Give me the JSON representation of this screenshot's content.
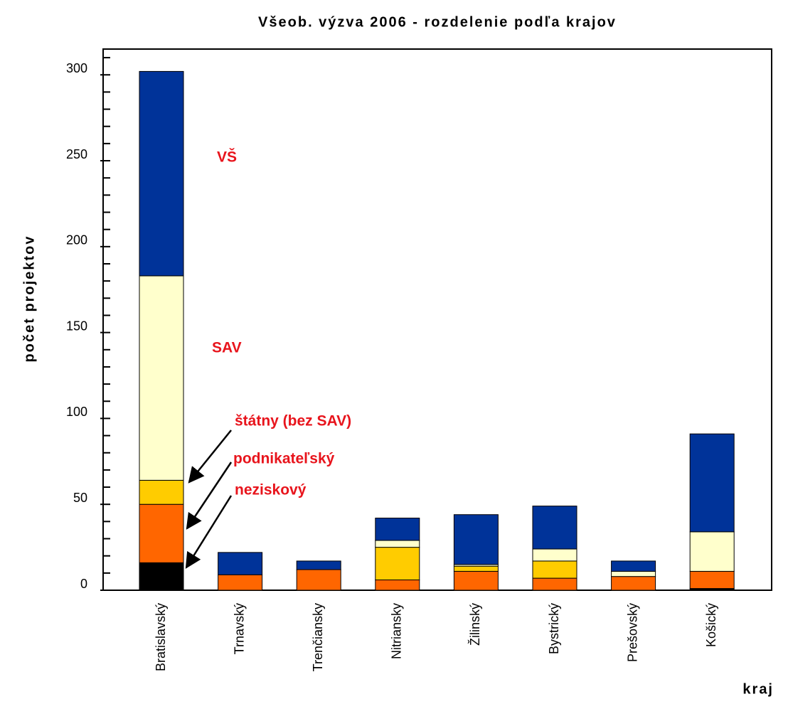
{
  "chart_data": {
    "type": "stacked_bar",
    "title": "Všeob.  výzva 2006 - rozdelenie podľa krajov",
    "y_label": "počet projektov",
    "x_label": "kraj",
    "categories": [
      "Bratislavský",
      "Trnavský",
      "Trenčiansky",
      "Nitriansky",
      "Žilinský",
      "Bystrický",
      "Prešovský",
      "Košický"
    ],
    "series": [
      {
        "name": "neziskový",
        "color": "#000000",
        "values": [
          16,
          0,
          0,
          0,
          0,
          0,
          0,
          1
        ]
      },
      {
        "name": "podnikateľský",
        "color": "#ff6600",
        "values": [
          34,
          9,
          12,
          6,
          11,
          7,
          8,
          10
        ]
      },
      {
        "name": "štátny (bez SAV)",
        "color": "#ffcc00",
        "values": [
          14,
          0,
          0,
          19,
          3,
          10,
          0,
          0
        ]
      },
      {
        "name": "SAV",
        "color": "#ffffcc",
        "values": [
          119,
          0,
          0,
          4,
          1,
          7,
          3,
          23
        ]
      },
      {
        "name": "VŠ",
        "color": "#003399",
        "values": [
          119,
          13,
          5,
          13,
          29,
          25,
          6,
          57
        ]
      }
    ],
    "ylim": [
      0,
      315
    ],
    "yticks": [
      0,
      50,
      100,
      150,
      200,
      250,
      300
    ],
    "yticks_minor": [
      10,
      20,
      30,
      40,
      60,
      70,
      80,
      90,
      110,
      120,
      130,
      140,
      160,
      170,
      180,
      190,
      210,
      220,
      230,
      240,
      260,
      270,
      280,
      290,
      310
    ]
  }
}
